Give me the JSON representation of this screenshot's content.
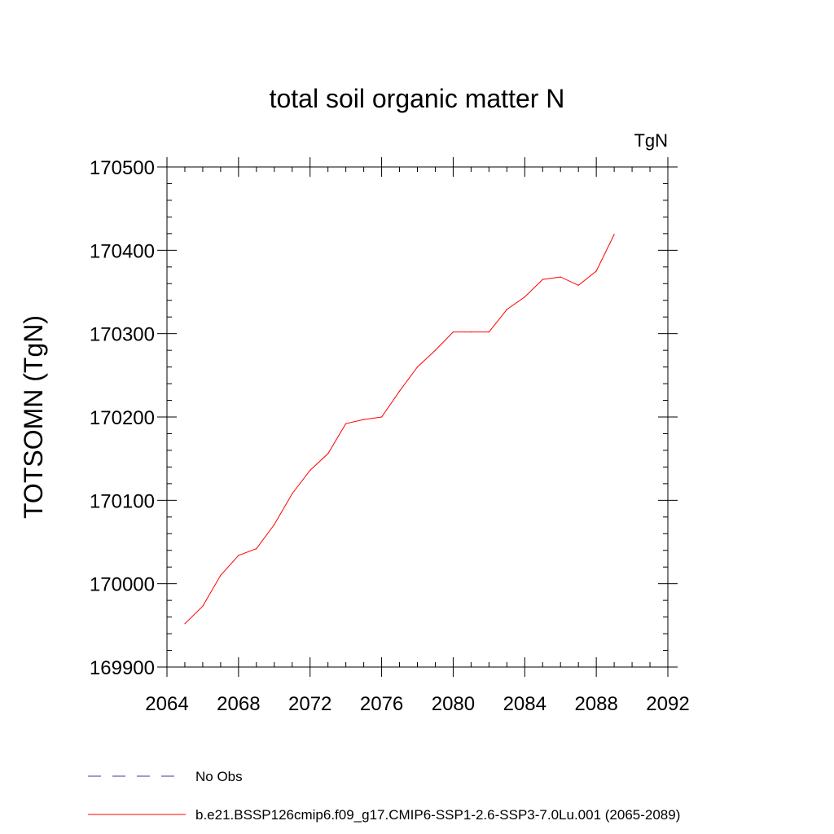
{
  "chart_data": {
    "type": "line",
    "title": "total soil organic matter N",
    "units_label": "TgN",
    "ylabel": "TOTSOMN  (TgN)",
    "xlabel": "",
    "xlim": [
      2064,
      2092
    ],
    "ylim": [
      169900,
      170500
    ],
    "x_ticks": [
      2064,
      2068,
      2072,
      2076,
      2080,
      2084,
      2088,
      2092
    ],
    "y_ticks": [
      169900,
      170000,
      170100,
      170200,
      170300,
      170400,
      170500
    ],
    "x_tick_labels": [
      "2064",
      "2068",
      "2072",
      "2076",
      "2080",
      "2084",
      "2088",
      "2092"
    ],
    "y_tick_labels": [
      "169900",
      "170000",
      "170100",
      "170200",
      "170300",
      "170400",
      "170500"
    ],
    "grid": false,
    "legend_position": "bottom",
    "series": [
      {
        "name": "b.e21.BSSP126cmip6.f09_g17.CMIP6-SSP1-2.6-SSP3-7.0Lu.001 (2065-2089)",
        "color": "#ff0000",
        "dash": "solid",
        "x": [
          2065,
          2066,
          2067,
          2068,
          2069,
          2070,
          2071,
          2072,
          2073,
          2074,
          2075,
          2076,
          2077,
          2078,
          2079,
          2080,
          2081,
          2082,
          2083,
          2084,
          2085,
          2086,
          2087,
          2088,
          2089
        ],
        "y": [
          169952,
          169973,
          170010,
          170034,
          170042,
          170071,
          170108,
          170136,
          170156,
          170192,
          170197,
          170200,
          170231,
          170260,
          170280,
          170302,
          170302,
          170302,
          170329,
          170344,
          170365,
          170368,
          170358,
          170375,
          170419
        ]
      },
      {
        "name": "No Obs",
        "color": "#3a3aa0",
        "dash": "dashed",
        "x": [],
        "y": []
      }
    ]
  }
}
